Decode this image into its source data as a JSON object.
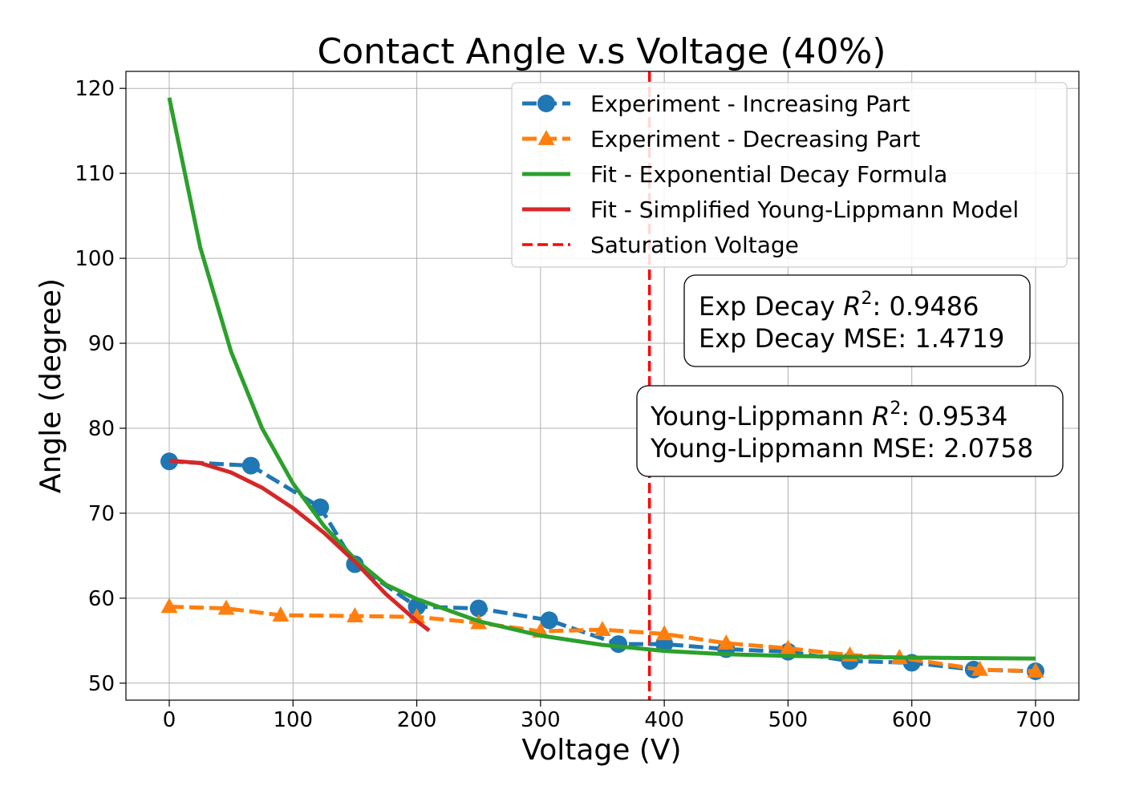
{
  "chart_data": {
    "type": "line",
    "title": "Contact Angle v.s Voltage (40%)",
    "xlabel": "Voltage (V)",
    "ylabel": "Angle (degree)",
    "xlim": [
      -35,
      735
    ],
    "ylim": [
      48,
      122
    ],
    "xticks": [
      0,
      100,
      200,
      300,
      400,
      500,
      600,
      700
    ],
    "yticks": [
      50,
      60,
      70,
      80,
      90,
      100,
      110,
      120
    ],
    "grid": true,
    "legend_position": "top-right",
    "series": [
      {
        "name": "Experiment - Increasing Part",
        "style": "dashed-marker-circle",
        "color": "#1f77b4",
        "x": [
          0,
          66,
          122,
          150,
          200,
          250,
          307,
          363,
          400,
          450,
          500,
          550,
          600,
          650,
          700
        ],
        "y": [
          76.1,
          75.6,
          70.7,
          64.0,
          59.0,
          58.8,
          57.4,
          54.6,
          54.6,
          54.0,
          53.7,
          52.6,
          52.4,
          51.6,
          51.4
        ]
      },
      {
        "name": "Experiment - Decreasing Part",
        "style": "dashed-marker-triangle",
        "color": "#ff7f0e",
        "x": [
          0,
          46,
          90,
          150,
          200,
          250,
          300,
          350,
          400,
          450,
          500,
          550,
          590,
          655,
          700
        ],
        "y": [
          59.0,
          58.8,
          58.0,
          57.9,
          57.8,
          57.1,
          56.1,
          56.3,
          55.8,
          54.7,
          54.1,
          53.3,
          53.0,
          51.6,
          51.4
        ]
      },
      {
        "name": "Fit - Exponential Decay Formula",
        "style": "solid",
        "color": "#2ca02c",
        "x": [
          0,
          25,
          50,
          75,
          100,
          125,
          150,
          175,
          200,
          250,
          300,
          350,
          400,
          450,
          500,
          600,
          700
        ],
        "y": [
          118.9,
          101.3,
          89.0,
          80.0,
          73.5,
          68.5,
          64.6,
          61.6,
          59.9,
          57.3,
          55.6,
          54.5,
          53.8,
          53.4,
          53.2,
          53.0,
          52.9
        ]
      },
      {
        "name": "Fit - Simplified Young-Lippmann Model",
        "style": "solid",
        "color": "#d62728",
        "x": [
          0,
          25,
          50,
          75,
          100,
          125,
          150,
          175,
          200,
          210
        ],
        "y": [
          76.2,
          75.9,
          74.8,
          73.0,
          70.6,
          67.7,
          64.3,
          60.5,
          57.3,
          56.2
        ]
      }
    ],
    "reference_line": {
      "name": "Saturation Voltage",
      "x": 388,
      "color": "#ff0000",
      "style": "dashed"
    },
    "annotations": [
      {
        "line1_prefix": "Exp Decay ",
        "line1_var": "R",
        "line1_sup": "2",
        "line1_suffix": ": 0.9486",
        "line2": "Exp Decay MSE: 1.4719"
      },
      {
        "line1_prefix": "Young-Lippmann ",
        "line1_var": "R",
        "line1_sup": "2",
        "line1_suffix": ": 0.9534",
        "line2": "Young-Lippmann MSE: 2.0758"
      }
    ]
  }
}
